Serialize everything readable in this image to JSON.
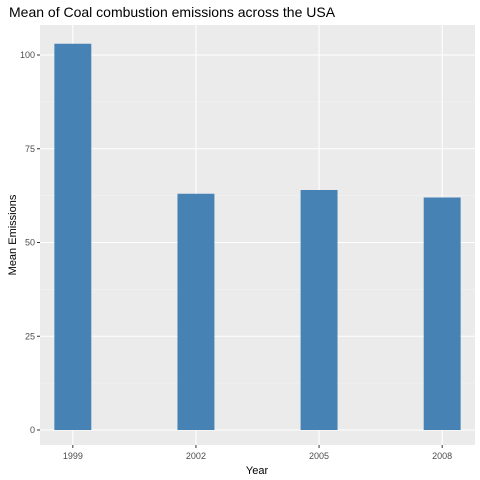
{
  "chart_data": {
    "type": "bar",
    "title": "Mean of Coal combustion emissions across the USA",
    "xlabel": "Year",
    "ylabel": "Mean Emissions",
    "categories": [
      1999,
      2002,
      2005,
      2008
    ],
    "values": [
      103,
      63,
      64,
      62
    ],
    "ylim": [
      -4,
      108
    ],
    "yticks": [
      0,
      25,
      50,
      75,
      100
    ],
    "xlim": [
      1998.2,
      2008.8
    ],
    "grid": true,
    "legend": "none",
    "colors": {
      "bar": "#4682b4",
      "panel": "#ebebeb",
      "grid_major": "#ffffff",
      "grid_minor": "#f5f5f5"
    }
  }
}
